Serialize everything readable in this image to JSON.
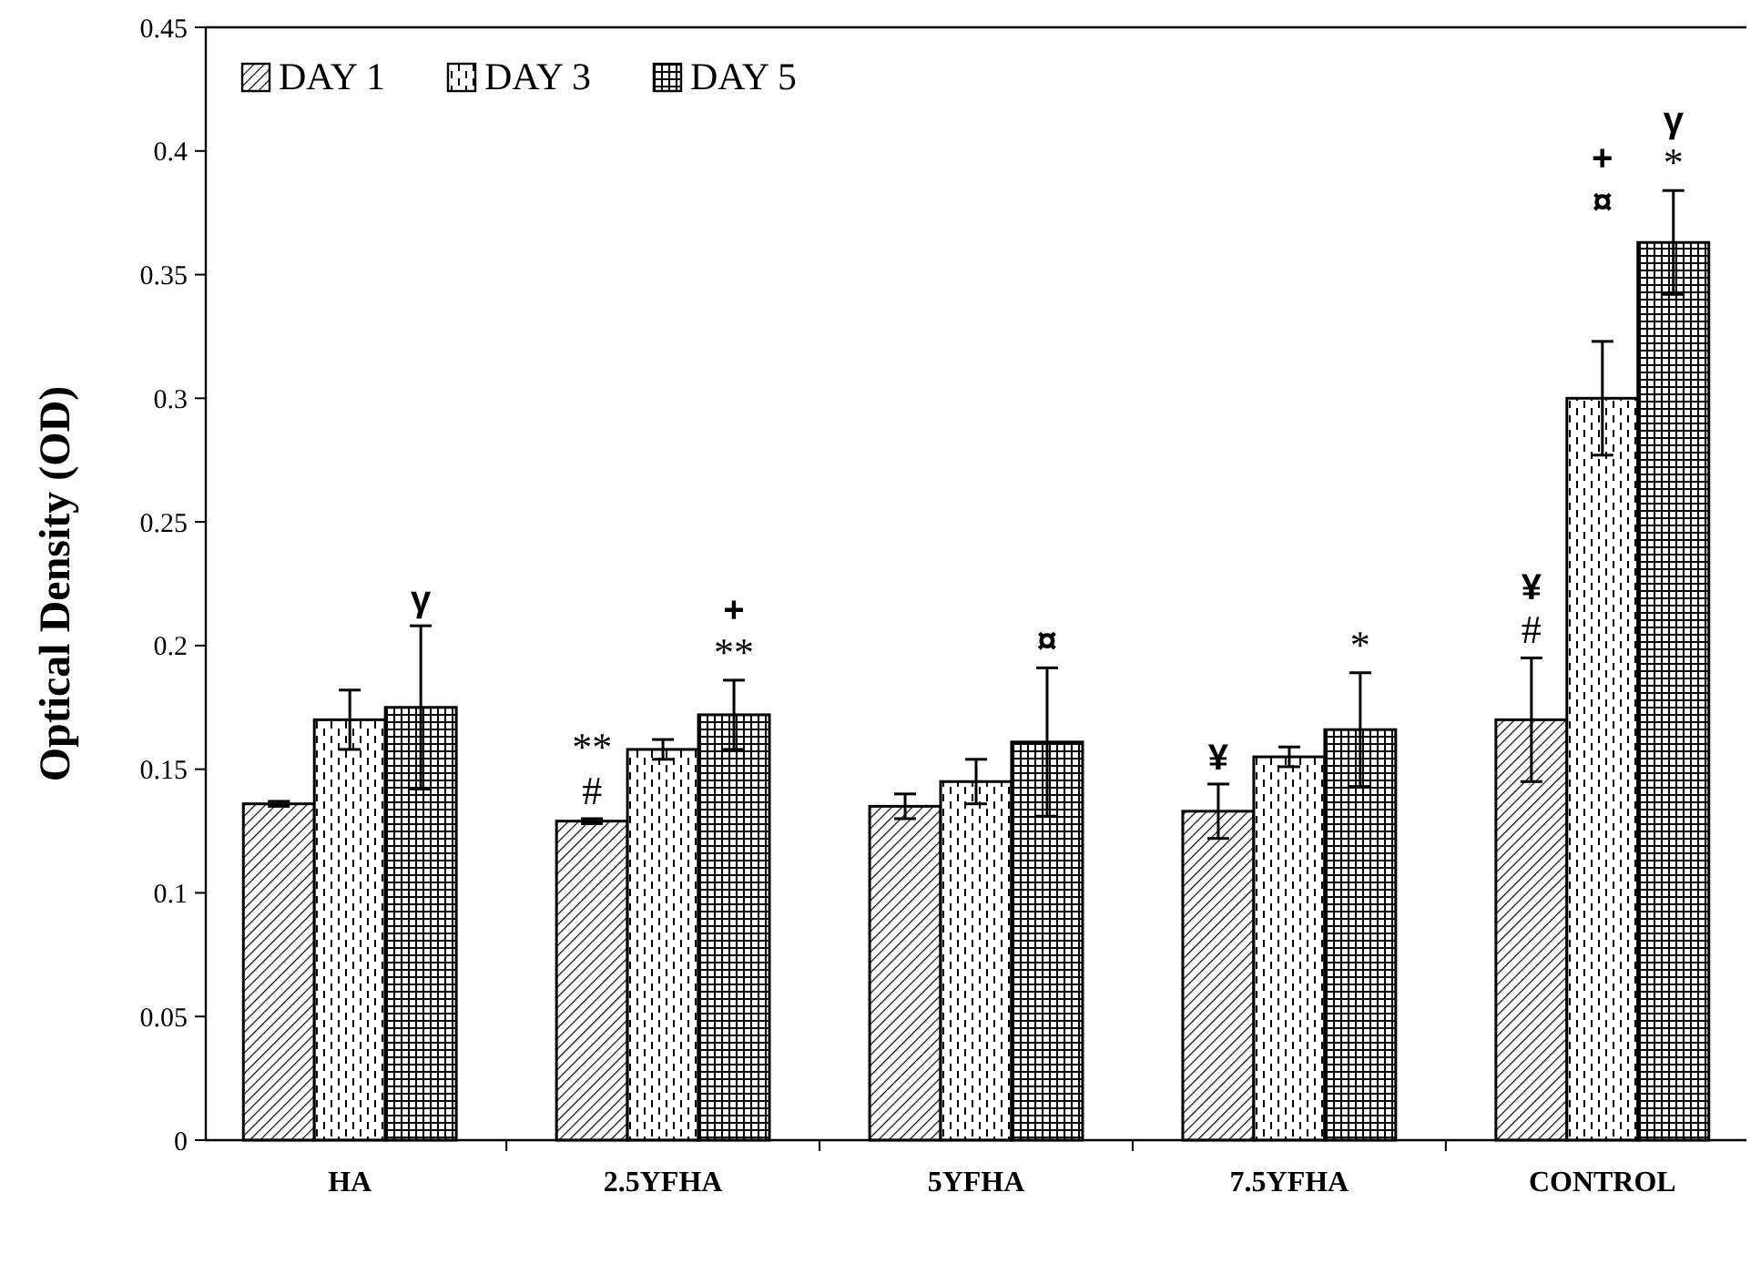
{
  "chart_data": {
    "type": "bar",
    "ylabel": "Optical Density (OD)",
    "categories": [
      "HA",
      "2.5YFHA",
      "5YFHA",
      "7.5YFHA",
      "CONTROL"
    ],
    "series": [
      {
        "name": "DAY 1",
        "color": "#000000",
        "values": [
          0.136,
          0.129,
          0.135,
          0.133,
          0.17
        ],
        "errors": [
          0.001,
          0.001,
          0.005,
          0.011,
          0.025
        ]
      },
      {
        "name": "DAY 3",
        "color": "#000000",
        "values": [
          0.17,
          0.158,
          0.145,
          0.155,
          0.3
        ],
        "errors": [
          0.012,
          0.004,
          0.009,
          0.004,
          0.023
        ]
      },
      {
        "name": "DAY 5",
        "color": "#000000",
        "values": [
          0.175,
          0.172,
          0.161,
          0.166,
          0.363
        ],
        "errors": [
          0.033,
          0.014,
          0.03,
          0.023,
          0.021
        ]
      }
    ],
    "ylim": [
      0,
      0.45
    ],
    "yticks": [
      0,
      0.05,
      0.1,
      0.15,
      0.2,
      0.25,
      0.3,
      0.35,
      0.4,
      0.45
    ],
    "grid": false,
    "legend": "top left",
    "annotations": [
      "γ",
      "#",
      "**",
      "**",
      "+",
      "¤",
      "¥",
      "*",
      "#",
      "¥",
      "¤",
      "+",
      "*",
      "γ"
    ]
  }
}
